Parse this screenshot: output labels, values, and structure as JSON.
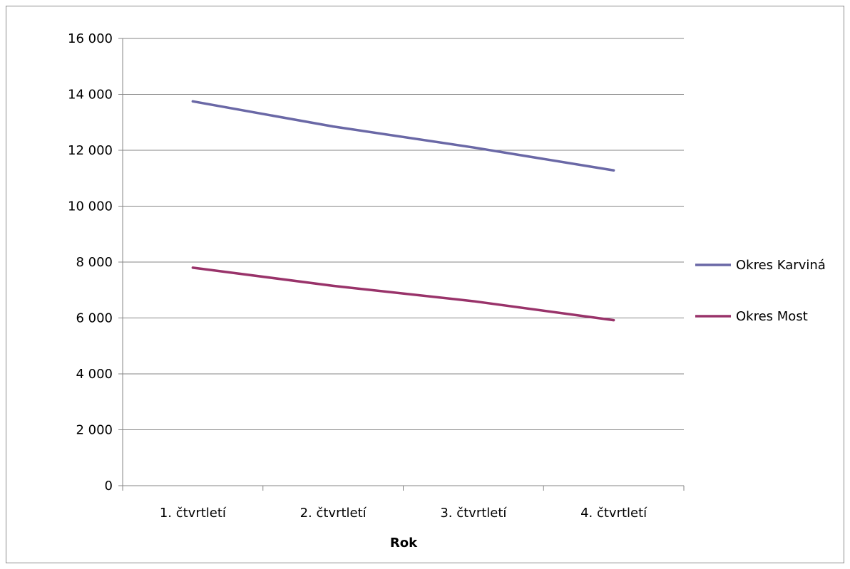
{
  "chart_data": {
    "type": "line",
    "title": "",
    "xlabel": "Rok",
    "ylabel": "",
    "categories": [
      "1. čtvrtletí",
      "2. čtvrtletí",
      "3. čtvrtletí",
      "4. čtvrtletí"
    ],
    "ylim": [
      0,
      16000
    ],
    "yticks": [
      0,
      2000,
      4000,
      6000,
      8000,
      10000,
      12000,
      14000,
      16000
    ],
    "ytick_labels": [
      "0",
      "2 000",
      "4 000",
      "6 000",
      "8 000",
      "10 000",
      "12 000",
      "14 000",
      "16 000"
    ],
    "grid": true,
    "legend_position": "right",
    "series": [
      {
        "name": "Okres Karviná",
        "color": "#6a68a6",
        "values": [
          13750,
          12850,
          12100,
          11280
        ]
      },
      {
        "name": "Okres Most",
        "color": "#99336a",
        "values": [
          7800,
          7150,
          6600,
          5920
        ]
      }
    ]
  }
}
